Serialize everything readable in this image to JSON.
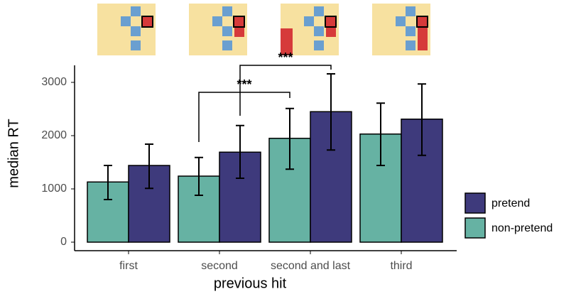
{
  "chart_data": {
    "type": "bar",
    "x_label": "previous hit",
    "y_label": "median RT",
    "categories": [
      "first",
      "second",
      "second and last",
      "third"
    ],
    "series": [
      {
        "name": "non-pretend",
        "color": "#66b2a3",
        "values": [
          1130,
          1240,
          1950,
          2030
        ],
        "lower": [
          800,
          880,
          1370,
          1440
        ],
        "upper": [
          1440,
          1590,
          2510,
          2610
        ]
      },
      {
        "name": "pretend",
        "color": "#3e3a7c",
        "values": [
          1440,
          1690,
          2450,
          2310
        ],
        "lower": [
          1010,
          1200,
          1730,
          1630
        ],
        "upper": [
          1840,
          2190,
          3160,
          2970
        ]
      }
    ],
    "legend_order": [
      1,
      0
    ],
    "annotations": [
      {
        "text": "***"
      },
      {
        "text": "***"
      }
    ],
    "ylim": [
      0,
      3300
    ],
    "yticks": [
      0,
      1000,
      2000,
      3000
    ],
    "grid": false
  }
}
